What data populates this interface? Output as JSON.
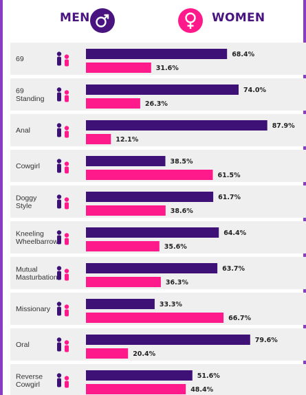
{
  "header": {
    "men_label": "MEN",
    "women_label": "WOMEN",
    "men_icon": "male-symbol-icon",
    "women_icon": "female-symbol-icon"
  },
  "colors": {
    "men": "#3d1176",
    "women": "#ff1a8c",
    "row_background": "#efefef",
    "accent": "#8a3dc2"
  },
  "chart_data": {
    "type": "bar",
    "orientation": "horizontal",
    "categories": [
      "69",
      "69 Standing",
      "Anal",
      "Cowgirl",
      "Doggy Style",
      "Kneeling Wheelbarrow",
      "Mutual Masturbation",
      "Missionary",
      "Oral",
      "Reverse Cowgirl"
    ],
    "category_lines": [
      [
        "69"
      ],
      [
        "69",
        "Standing"
      ],
      [
        "Anal"
      ],
      [
        "Cowgirl"
      ],
      [
        "Doggy",
        "Style"
      ],
      [
        "Kneeling",
        "Wheelbarrow"
      ],
      [
        "Mutual",
        "Masturbation"
      ],
      [
        "Missionary"
      ],
      [
        "Oral"
      ],
      [
        "Reverse",
        "Cowgirl"
      ]
    ],
    "series": [
      {
        "name": "MEN",
        "values": [
          68.4,
          74.0,
          87.9,
          38.5,
          61.7,
          64.4,
          63.7,
          33.3,
          79.6,
          51.6
        ]
      },
      {
        "name": "WOMEN",
        "values": [
          31.6,
          26.3,
          12.1,
          61.5,
          38.6,
          35.6,
          36.3,
          66.7,
          20.4,
          48.4
        ]
      }
    ],
    "value_labels": [
      [
        "68.4%",
        "31.6%"
      ],
      [
        "74.0%",
        "26.3%"
      ],
      [
        "87.9%",
        "12.1%"
      ],
      [
        "38.5%",
        "61.5%"
      ],
      [
        "61.7%",
        "38.6%"
      ],
      [
        "64.4%",
        "35.6%"
      ],
      [
        "63.7%",
        "36.3%"
      ],
      [
        "33.3%",
        "66.7%"
      ],
      [
        "79.6%",
        "20.4%"
      ],
      [
        "51.6%",
        "48.4%"
      ]
    ],
    "unit": "%",
    "xlim": [
      0,
      100
    ],
    "legend": "top",
    "grid": false
  }
}
